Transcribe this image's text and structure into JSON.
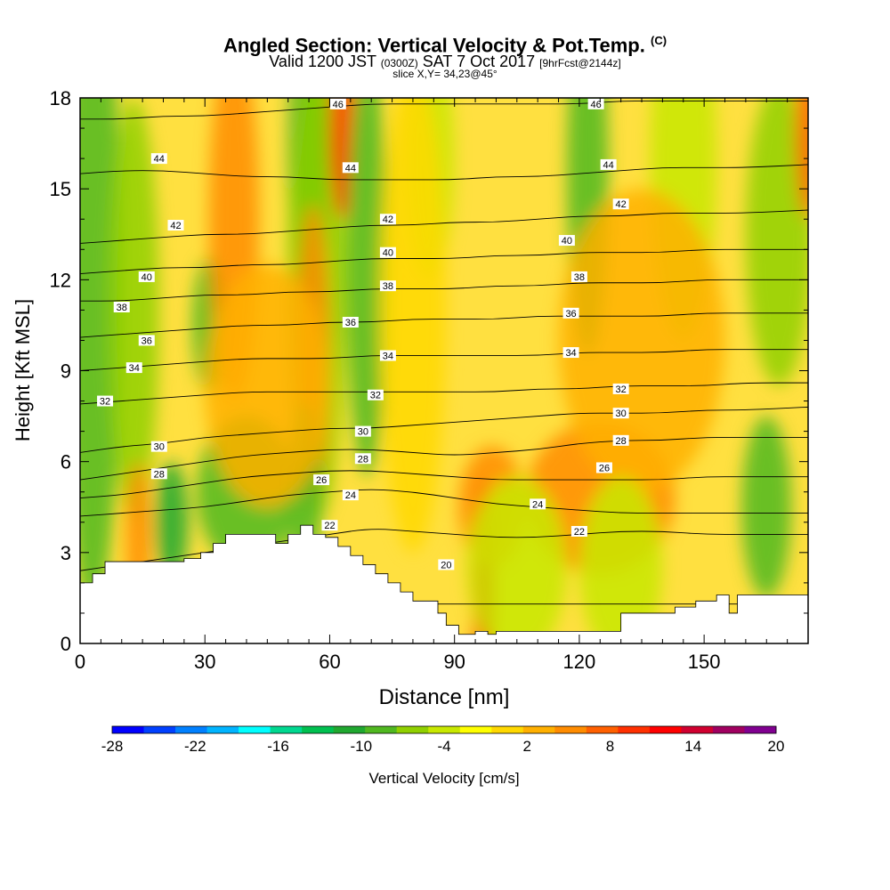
{
  "header": {
    "title": "Angled Section: Vertical Velocity & Pot.Temp.",
    "title_units": "(C)",
    "valid_prefix": "Valid 1200 JST",
    "valid_utc": "(0300Z)",
    "valid_date": "SAT 7 Oct 2017",
    "forecast": "[9hrFcst@2144z]",
    "slice": "slice X,Y= 34,23@45°"
  },
  "chart_data": {
    "type": "heatmap",
    "title": "Angled Section: Vertical Velocity & Pot.Temp.",
    "xlabel": "Distance [nm]",
    "ylabel": "Height [Kft MSL]",
    "xlim": [
      0,
      175
    ],
    "ylim": [
      0,
      18
    ],
    "x_ticks": [
      0,
      30,
      60,
      90,
      120,
      150
    ],
    "y_ticks": [
      0,
      3,
      6,
      9,
      12,
      15,
      18
    ],
    "grid": false,
    "colorbar": {
      "label": "Vertical Velocity [cm/s]",
      "tick_labels": [
        "-28",
        "-22",
        "-16",
        "-10",
        "-4",
        "2",
        "8",
        "14",
        "20"
      ],
      "colors": [
        "#0000ff",
        "#0040ff",
        "#0080ff",
        "#00b4ff",
        "#00ffff",
        "#00d890",
        "#00c050",
        "#20a830",
        "#50b820",
        "#90d000",
        "#c8e800",
        "#ffff00",
        "#ffd800",
        "#ffb000",
        "#ff8c00",
        "#ff6000",
        "#ff3000",
        "#ff0000",
        "#d00030",
        "#a00060",
        "#800090"
      ]
    },
    "pot_temp_contours": [
      {
        "value": 20,
        "y": [
          1.6,
          1.6,
          1.6,
          1.6,
          1.6,
          1.5,
          1.5,
          1.4,
          1.3,
          1.3,
          1.3,
          1.3,
          1.3,
          1.3,
          1.3,
          1.3,
          1.3,
          1.3
        ]
      },
      {
        "value": 22,
        "y": [
          2.4,
          2.6,
          2.8,
          3.0,
          3.2,
          3.4,
          3.6,
          3.8,
          3.7,
          3.6,
          3.5,
          3.5,
          3.6,
          3.7,
          3.7,
          3.6,
          3.6,
          3.6
        ]
      },
      {
        "value": 24,
        "y": [
          4.2,
          4.3,
          4.4,
          4.5,
          4.7,
          4.9,
          5.0,
          5.1,
          5.0,
          4.8,
          4.6,
          4.5,
          4.4,
          4.3,
          4.3,
          4.3,
          4.3,
          4.3
        ]
      },
      {
        "value": 26,
        "y": [
          4.8,
          4.9,
          5.1,
          5.3,
          5.5,
          5.6,
          5.7,
          5.7,
          5.6,
          5.5,
          5.4,
          5.4,
          5.4,
          5.4,
          5.4,
          5.5,
          5.5,
          5.5
        ]
      },
      {
        "value": 28,
        "y": [
          5.4,
          5.6,
          5.8,
          6.0,
          6.2,
          6.3,
          6.4,
          6.4,
          6.3,
          6.2,
          6.3,
          6.4,
          6.6,
          6.7,
          6.7,
          6.8,
          6.8,
          6.8
        ]
      },
      {
        "value": 30,
        "y": [
          6.3,
          6.5,
          6.6,
          6.8,
          6.9,
          7.0,
          7.1,
          7.1,
          7.2,
          7.3,
          7.4,
          7.5,
          7.6,
          7.6,
          7.6,
          7.7,
          7.7,
          7.8
        ]
      },
      {
        "value": 32,
        "y": [
          7.9,
          8.0,
          8.1,
          8.2,
          8.3,
          8.3,
          8.3,
          8.3,
          8.3,
          8.3,
          8.3,
          8.4,
          8.4,
          8.5,
          8.5,
          8.5,
          8.6,
          8.6
        ]
      },
      {
        "value": 34,
        "y": [
          9.0,
          9.1,
          9.2,
          9.3,
          9.4,
          9.4,
          9.4,
          9.5,
          9.5,
          9.5,
          9.5,
          9.5,
          9.6,
          9.6,
          9.6,
          9.7,
          9.7,
          9.7
        ]
      },
      {
        "value": 36,
        "y": [
          10.1,
          10.2,
          10.3,
          10.4,
          10.5,
          10.5,
          10.6,
          10.6,
          10.7,
          10.7,
          10.7,
          10.8,
          10.8,
          10.8,
          10.8,
          10.9,
          10.9,
          10.9
        ]
      },
      {
        "value": 38,
        "y": [
          11.3,
          11.3,
          11.4,
          11.5,
          11.5,
          11.6,
          11.6,
          11.7,
          11.7,
          11.7,
          11.8,
          11.8,
          11.9,
          11.9,
          11.9,
          12.0,
          12.0,
          12.0
        ]
      },
      {
        "value": 40,
        "y": [
          12.2,
          12.3,
          12.4,
          12.4,
          12.5,
          12.5,
          12.6,
          12.7,
          12.7,
          12.7,
          12.8,
          12.8,
          12.9,
          12.9,
          12.9,
          13.0,
          13.0,
          13.0
        ]
      },
      {
        "value": 42,
        "y": [
          13.2,
          13.3,
          13.4,
          13.5,
          13.5,
          13.6,
          13.7,
          13.8,
          13.8,
          13.9,
          13.9,
          14.0,
          14.1,
          14.1,
          14.2,
          14.2,
          14.2,
          14.3
        ]
      },
      {
        "value": 44,
        "y": [
          15.5,
          15.6,
          15.6,
          15.5,
          15.4,
          15.4,
          15.3,
          15.3,
          15.3,
          15.3,
          15.4,
          15.4,
          15.5,
          15.6,
          15.7,
          15.7,
          15.7,
          15.8
        ]
      },
      {
        "value": 46,
        "y": [
          17.3,
          17.3,
          17.4,
          17.4,
          17.5,
          17.6,
          17.7,
          17.8,
          17.8,
          17.8,
          17.8,
          17.8,
          17.8,
          17.9,
          17.9,
          17.9,
          17.9,
          17.9
        ]
      }
    ],
    "contour_x": [
      0,
      10,
      20,
      30,
      40,
      50,
      60,
      70,
      80,
      90,
      100,
      110,
      120,
      130,
      140,
      150,
      160,
      175
    ],
    "contour_labels": [
      {
        "text": "46",
        "x": 62,
        "y": 17.8
      },
      {
        "text": "46",
        "x": 124,
        "y": 17.8
      },
      {
        "text": "44",
        "x": 19,
        "y": 16.0
      },
      {
        "text": "44",
        "x": 65,
        "y": 15.7
      },
      {
        "text": "44",
        "x": 127,
        "y": 15.8
      },
      {
        "text": "42",
        "x": 23,
        "y": 13.8
      },
      {
        "text": "42",
        "x": 74,
        "y": 14.0
      },
      {
        "text": "42",
        "x": 130,
        "y": 14.5
      },
      {
        "text": "40",
        "x": 16,
        "y": 12.1
      },
      {
        "text": "40",
        "x": 74,
        "y": 12.9
      },
      {
        "text": "40",
        "x": 117,
        "y": 13.3
      },
      {
        "text": "38",
        "x": 10,
        "y": 11.1
      },
      {
        "text": "38",
        "x": 74,
        "y": 11.8
      },
      {
        "text": "38",
        "x": 120,
        "y": 12.1
      },
      {
        "text": "36",
        "x": 16,
        "y": 10.0
      },
      {
        "text": "36",
        "x": 65,
        "y": 10.6
      },
      {
        "text": "36",
        "x": 118,
        "y": 10.9
      },
      {
        "text": "34",
        "x": 13,
        "y": 9.1
      },
      {
        "text": "34",
        "x": 74,
        "y": 9.5
      },
      {
        "text": "34",
        "x": 118,
        "y": 9.6
      },
      {
        "text": "32",
        "x": 6,
        "y": 8.0
      },
      {
        "text": "32",
        "x": 71,
        "y": 8.2
      },
      {
        "text": "32",
        "x": 130,
        "y": 8.4
      },
      {
        "text": "30",
        "x": 19,
        "y": 6.5
      },
      {
        "text": "30",
        "x": 68,
        "y": 7.0
      },
      {
        "text": "30",
        "x": 130,
        "y": 7.6
      },
      {
        "text": "28",
        "x": 19,
        "y": 5.6
      },
      {
        "text": "28",
        "x": 68,
        "y": 6.1
      },
      {
        "text": "28",
        "x": 130,
        "y": 6.7
      },
      {
        "text": "26",
        "x": 58,
        "y": 5.4
      },
      {
        "text": "26",
        "x": 126,
        "y": 5.8
      },
      {
        "text": "24",
        "x": 65,
        "y": 4.9
      },
      {
        "text": "24",
        "x": 110,
        "y": 4.6
      },
      {
        "text": "22",
        "x": 60,
        "y": 3.9
      },
      {
        "text": "22",
        "x": 120,
        "y": 3.7
      },
      {
        "text": "20",
        "x": 88,
        "y": 2.6
      }
    ],
    "terrain": {
      "x": [
        0,
        3,
        3,
        6,
        6,
        25,
        25,
        29,
        29,
        32,
        32,
        35,
        35,
        38,
        38,
        47,
        47,
        50,
        50,
        53,
        53,
        56,
        56,
        59,
        59,
        62,
        62,
        65,
        65,
        68,
        68,
        71,
        71,
        74,
        74,
        77,
        77,
        80,
        80,
        86,
        86,
        88,
        88,
        91,
        91,
        95,
        95,
        98,
        98,
        100,
        100,
        130,
        130,
        143,
        143,
        148,
        148,
        153,
        153,
        156,
        156,
        158,
        158,
        160,
        160,
        175
      ],
      "y": [
        2.0,
        2.0,
        2.3,
        2.3,
        2.7,
        2.7,
        2.8,
        2.8,
        3.0,
        3.0,
        3.3,
        3.3,
        3.6,
        3.6,
        3.6,
        3.6,
        3.3,
        3.3,
        3.6,
        3.6,
        3.9,
        3.9,
        3.6,
        3.6,
        3.5,
        3.5,
        3.2,
        3.2,
        2.9,
        2.9,
        2.6,
        2.6,
        2.3,
        2.3,
        2.0,
        2.0,
        1.7,
        1.7,
        1.4,
        1.4,
        1.0,
        1.0,
        0.6,
        0.6,
        0.3,
        0.3,
        0.4,
        0.4,
        0.3,
        0.3,
        0.4,
        0.4,
        1.0,
        1.0,
        1.2,
        1.2,
        1.4,
        1.4,
        1.6,
        1.6,
        1.0,
        1.0,
        1.6,
        1.6,
        1.6,
        1.6
      ]
    },
    "velocity_features": [
      {
        "x": 3,
        "y": 12,
        "w": 7,
        "h": 11,
        "v": -8
      },
      {
        "x": 13,
        "y": 11,
        "w": 6,
        "h": 7,
        "v": -6
      },
      {
        "x": 31,
        "y": 10.5,
        "w": 4,
        "h": 2.2,
        "v": -8
      },
      {
        "x": 37,
        "y": 14,
        "w": 6,
        "h": 6,
        "v": 6
      },
      {
        "x": 55,
        "y": 16,
        "w": 5,
        "h": 5,
        "v": -12
      },
      {
        "x": 57,
        "y": 12,
        "w": 7,
        "h": 8,
        "v": -6
      },
      {
        "x": 63,
        "y": 17,
        "w": 3,
        "h": 3,
        "v": 10
      },
      {
        "x": 69,
        "y": 12.5,
        "w": 5,
        "h": 7,
        "v": -10
      },
      {
        "x": 56,
        "y": 9.5,
        "w": 4,
        "h": 5,
        "v": 6
      },
      {
        "x": 84,
        "y": 16,
        "w": 6,
        "h": 4,
        "v": -5
      },
      {
        "x": 97,
        "y": 1.8,
        "w": 2.5,
        "h": 3.6,
        "v": 12
      },
      {
        "x": 99,
        "y": 4.5,
        "w": 8,
        "h": 2,
        "v": 5
      },
      {
        "x": 122,
        "y": 15.5,
        "w": 5,
        "h": 6,
        "v": -9
      },
      {
        "x": 145,
        "y": 16,
        "w": 8,
        "h": 6,
        "v": -5
      },
      {
        "x": 168,
        "y": 13.5,
        "w": 8,
        "h": 5,
        "v": -7
      },
      {
        "x": 175,
        "y": 17,
        "w": 3,
        "h": 3,
        "v": 8
      },
      {
        "x": 22,
        "y": 4,
        "w": 4,
        "h": 2,
        "v": -12
      },
      {
        "x": 40,
        "y": 5,
        "w": 12,
        "h": 2.5,
        "v": -9
      },
      {
        "x": 54,
        "y": 5,
        "w": 4,
        "h": 3,
        "v": -10
      },
      {
        "x": 14,
        "y": 3.5,
        "w": 3,
        "h": 2.5,
        "v": 6
      },
      {
        "x": 125,
        "y": 4.8,
        "w": 18,
        "h": 2.5,
        "v": 6
      },
      {
        "x": 165,
        "y": 4.5,
        "w": 6,
        "h": 3,
        "v": -8
      },
      {
        "x": 45,
        "y": 8.5,
        "w": 15,
        "h": 4,
        "v": 3
      },
      {
        "x": 135,
        "y": 10,
        "w": 20,
        "h": 5,
        "v": 2
      },
      {
        "x": 105,
        "y": 2.5,
        "w": 12,
        "h": 3,
        "v": -3
      },
      {
        "x": 130,
        "y": 2.5,
        "w": 10,
        "h": 3,
        "v": -4
      },
      {
        "x": 80,
        "y": 11,
        "w": 8,
        "h": 8,
        "v": 1
      }
    ]
  }
}
